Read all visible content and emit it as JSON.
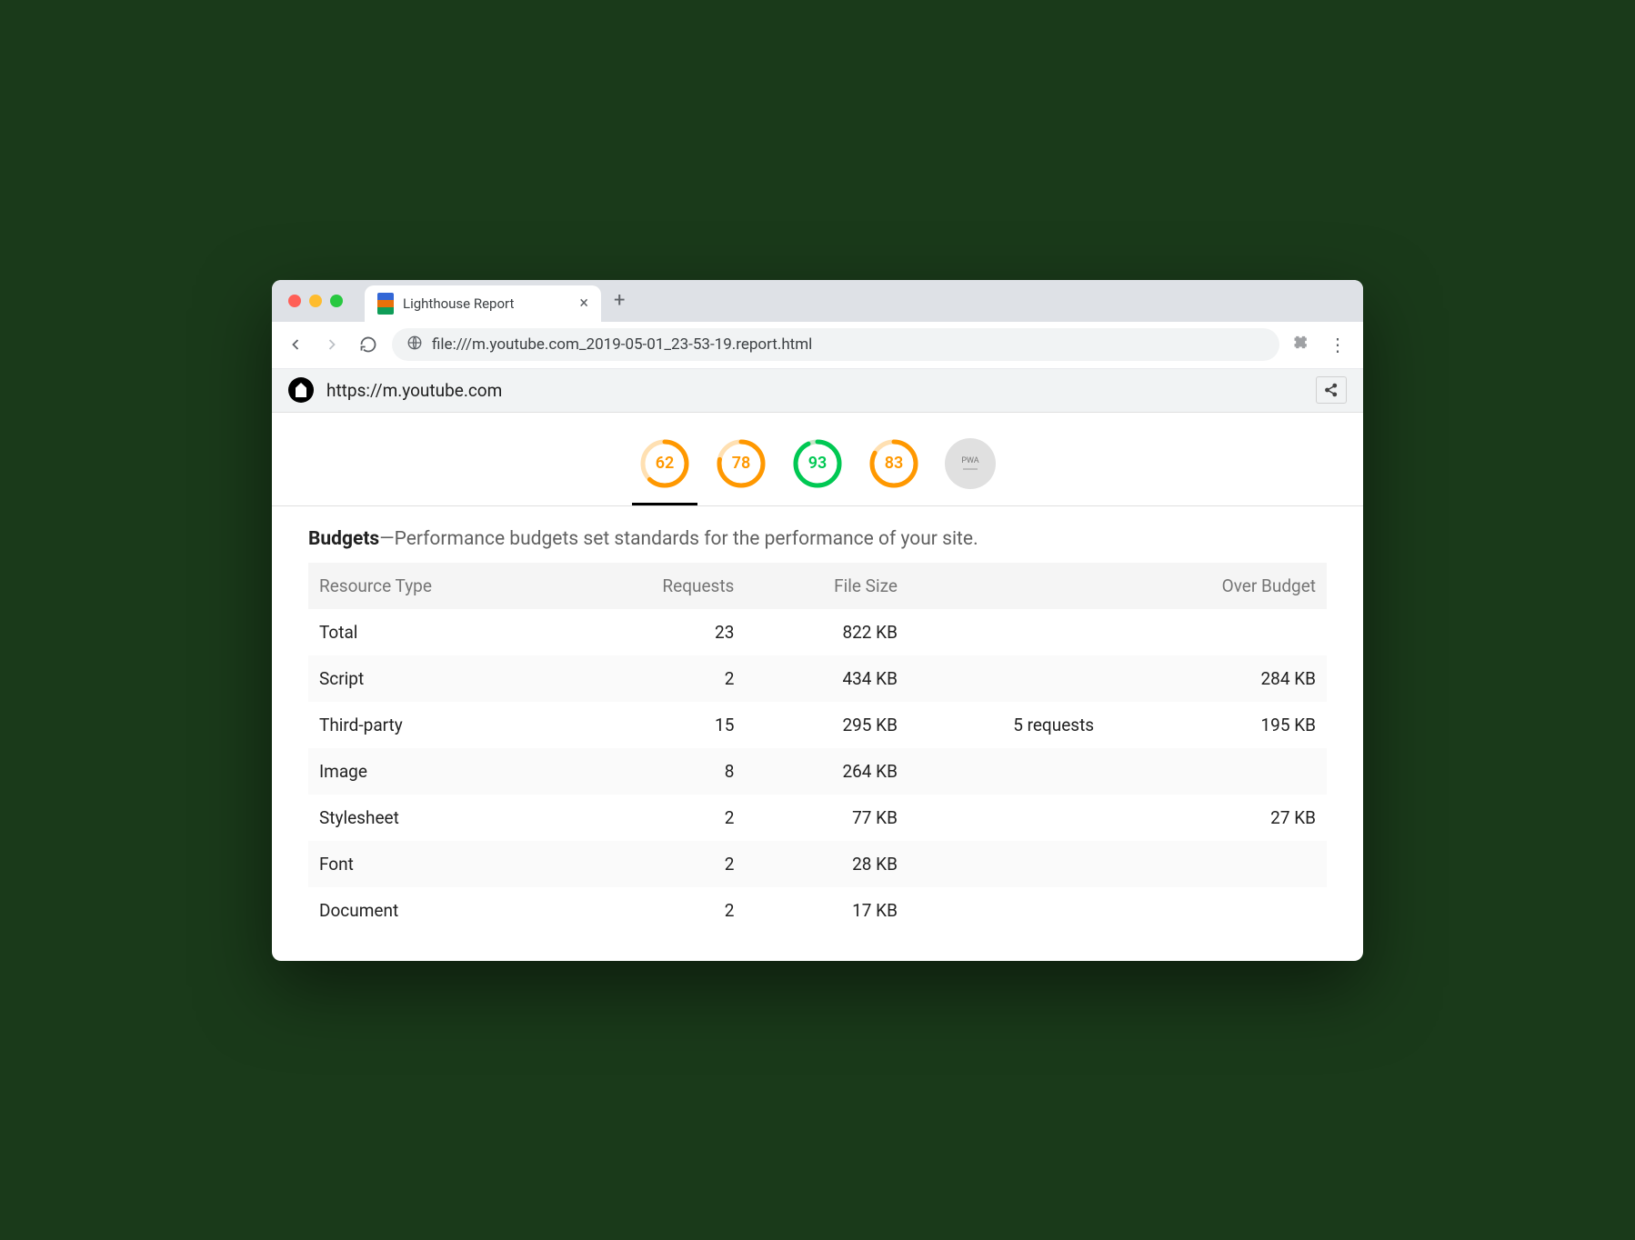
{
  "browser": {
    "tab_title": "Lighthouse Report",
    "url": "file:///m.youtube.com_2019-05-01_23-53-19.report.html"
  },
  "lh_topbar": {
    "page_url": "https://m.youtube.com"
  },
  "gauges": {
    "items": [
      {
        "value": 62,
        "color": "#ff9800",
        "active": true
      },
      {
        "value": 78,
        "color": "#ff9800",
        "active": false
      },
      {
        "value": 93,
        "color": "#00c853",
        "active": false
      },
      {
        "value": 83,
        "color": "#ff9800",
        "active": false
      }
    ],
    "pwa_label": "PWA",
    "track_color": "#ffe0b2",
    "track_color_green": "#c8e6c9"
  },
  "budgets": {
    "heading_bold": "Budgets",
    "heading_rest": "—Performance budgets set standards for the performance of your site.",
    "columns": {
      "c0": "Resource Type",
      "c1": "Requests",
      "c2": "File Size",
      "c3": "",
      "c4": "Over Budget"
    },
    "rows": [
      {
        "type": "Total",
        "requests": "23",
        "size": "822 KB",
        "over_req": "",
        "over_size": ""
      },
      {
        "type": "Script",
        "requests": "2",
        "size": "434 KB",
        "over_req": "",
        "over_size": "284 KB"
      },
      {
        "type": "Third-party",
        "requests": "15",
        "size": "295 KB",
        "over_req": "5 requests",
        "over_size": "195 KB"
      },
      {
        "type": "Image",
        "requests": "8",
        "size": "264 KB",
        "over_req": "",
        "over_size": ""
      },
      {
        "type": "Stylesheet",
        "requests": "2",
        "size": "77 KB",
        "over_req": "",
        "over_size": "27 KB"
      },
      {
        "type": "Font",
        "requests": "2",
        "size": "28 KB",
        "over_req": "",
        "over_size": ""
      },
      {
        "type": "Document",
        "requests": "2",
        "size": "17 KB",
        "over_req": "",
        "over_size": ""
      }
    ],
    "over_color": "#d93025"
  }
}
